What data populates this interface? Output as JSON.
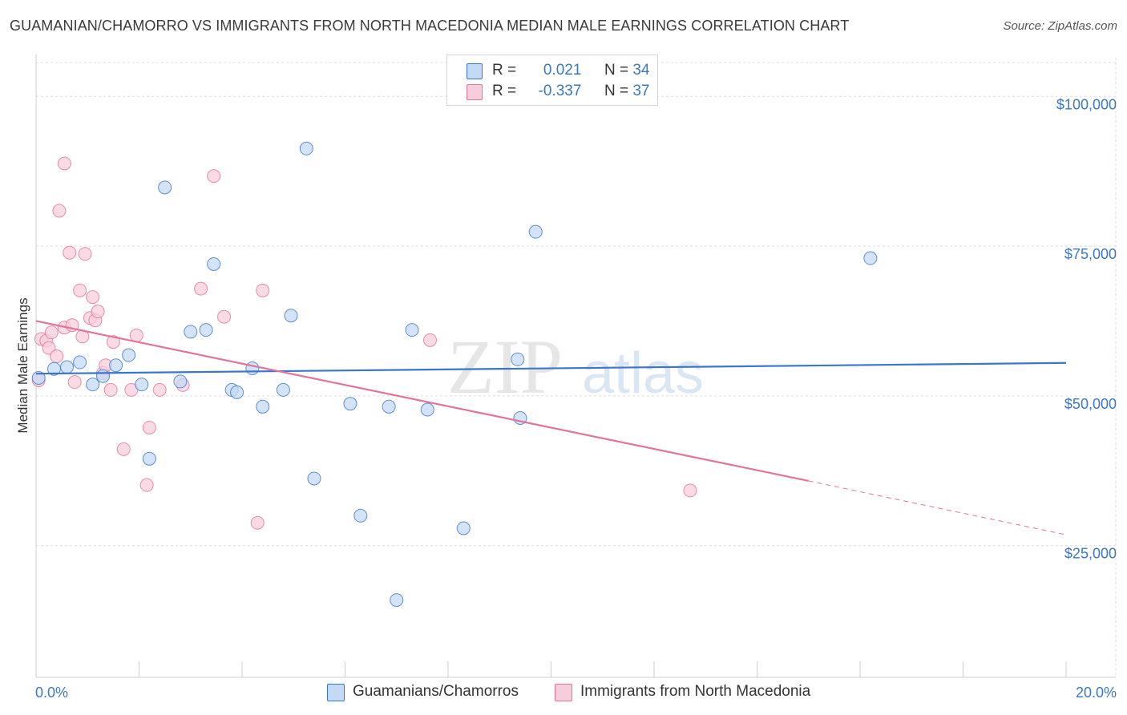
{
  "title": "GUAMANIAN/CHAMORRO VS IMMIGRANTS FROM NORTH MACEDONIA MEDIAN MALE EARNINGS CORRELATION CHART",
  "source": "Source: ZipAtlas.com",
  "watermark": {
    "zip": "ZIP",
    "atlas": "atlas"
  },
  "legend": {
    "r_label": "R =",
    "n_label": "N =",
    "series1": {
      "r": "0.021",
      "n": "34"
    },
    "series2": {
      "r": "-0.337",
      "n": "37"
    }
  },
  "bottom_legend": {
    "series1": "Guamanians/Chamorros",
    "series2": "Immigrants from North Macedonia"
  },
  "chart_data": {
    "type": "scatter",
    "title": "GUAMANIAN/CHAMORRO VS IMMIGRANTS FROM NORTH MACEDONIA MEDIAN MALE EARNINGS CORRELATION CHART",
    "xlabel": "",
    "ylabel": "Median Male Earnings",
    "xlim": [
      0,
      20
    ],
    "ylim": [
      3000,
      107000
    ],
    "x_tick_labels": [
      "0.0%",
      "20.0%"
    ],
    "y_ticks": [
      25000,
      50000,
      75000,
      100000
    ],
    "y_tick_labels": [
      "$25,000",
      "$50,000",
      "$75,000",
      "$100,000"
    ],
    "grid": true,
    "colors": {
      "series1": "#3a76cc",
      "series2": "#e2739a",
      "series1_fill": "#c4d9f5",
      "series2_fill": "#f8cddb"
    },
    "series": [
      {
        "name": "Guamanians/Chamorros",
        "r": 0.021,
        "n": 34,
        "trend": {
          "x": [
            0,
            20
          ],
          "y": [
            53700,
            55500
          ]
        },
        "points": [
          {
            "x": 0.05,
            "y": 53000
          },
          {
            "x": 0.35,
            "y": 54500
          },
          {
            "x": 0.6,
            "y": 54800
          },
          {
            "x": 0.85,
            "y": 55600
          },
          {
            "x": 1.1,
            "y": 51900
          },
          {
            "x": 1.3,
            "y": 53300
          },
          {
            "x": 1.55,
            "y": 55100
          },
          {
            "x": 1.8,
            "y": 56800
          },
          {
            "x": 2.05,
            "y": 51900
          },
          {
            "x": 2.2,
            "y": 39500
          },
          {
            "x": 2.5,
            "y": 84800
          },
          {
            "x": 2.8,
            "y": 52400
          },
          {
            "x": 3.0,
            "y": 60700
          },
          {
            "x": 3.3,
            "y": 61000
          },
          {
            "x": 3.45,
            "y": 72000
          },
          {
            "x": 3.8,
            "y": 51000
          },
          {
            "x": 3.9,
            "y": 50600
          },
          {
            "x": 4.2,
            "y": 54600
          },
          {
            "x": 4.4,
            "y": 48200
          },
          {
            "x": 4.8,
            "y": 51000
          },
          {
            "x": 4.95,
            "y": 63400
          },
          {
            "x": 5.25,
            "y": 91300
          },
          {
            "x": 5.4,
            "y": 36200
          },
          {
            "x": 6.3,
            "y": 30000
          },
          {
            "x": 6.1,
            "y": 48700
          },
          {
            "x": 6.85,
            "y": 48200
          },
          {
            "x": 7.3,
            "y": 61000
          },
          {
            "x": 7.6,
            "y": 47700
          },
          {
            "x": 8.3,
            "y": 27900
          },
          {
            "x": 7.0,
            "y": 15900
          },
          {
            "x": 9.35,
            "y": 56100
          },
          {
            "x": 9.4,
            "y": 46300
          },
          {
            "x": 9.7,
            "y": 77400
          },
          {
            "x": 16.2,
            "y": 73000
          }
        ]
      },
      {
        "name": "Immigrants from North Macedonia",
        "r": -0.337,
        "n": 37,
        "trend": {
          "x": [
            0,
            15
          ],
          "y": [
            62500,
            35800
          ]
        },
        "trend_dashed": {
          "x": [
            15,
            20
          ],
          "y": [
            35800,
            26800
          ]
        },
        "points": [
          {
            "x": 0.05,
            "y": 52600
          },
          {
            "x": 0.1,
            "y": 59500
          },
          {
            "x": 0.2,
            "y": 59200
          },
          {
            "x": 0.25,
            "y": 58000
          },
          {
            "x": 0.3,
            "y": 60600
          },
          {
            "x": 0.4,
            "y": 56600
          },
          {
            "x": 0.45,
            "y": 80900
          },
          {
            "x": 0.55,
            "y": 61400
          },
          {
            "x": 0.55,
            "y": 88800
          },
          {
            "x": 0.65,
            "y": 73900
          },
          {
            "x": 0.7,
            "y": 61800
          },
          {
            "x": 0.75,
            "y": 52300
          },
          {
            "x": 0.85,
            "y": 67600
          },
          {
            "x": 0.9,
            "y": 59900
          },
          {
            "x": 0.95,
            "y": 73700
          },
          {
            "x": 1.05,
            "y": 63000
          },
          {
            "x": 1.1,
            "y": 66500
          },
          {
            "x": 1.15,
            "y": 62600
          },
          {
            "x": 1.2,
            "y": 64100
          },
          {
            "x": 1.3,
            "y": 53800
          },
          {
            "x": 1.35,
            "y": 55100
          },
          {
            "x": 1.45,
            "y": 51000
          },
          {
            "x": 1.5,
            "y": 59000
          },
          {
            "x": 1.7,
            "y": 41100
          },
          {
            "x": 1.85,
            "y": 51000
          },
          {
            "x": 1.95,
            "y": 60100
          },
          {
            "x": 2.15,
            "y": 35100
          },
          {
            "x": 2.2,
            "y": 44700
          },
          {
            "x": 2.4,
            "y": 51000
          },
          {
            "x": 2.85,
            "y": 51800
          },
          {
            "x": 3.2,
            "y": 67900
          },
          {
            "x": 3.45,
            "y": 86700
          },
          {
            "x": 3.65,
            "y": 63200
          },
          {
            "x": 4.3,
            "y": 28800
          },
          {
            "x": 4.4,
            "y": 67600
          },
          {
            "x": 7.65,
            "y": 59300
          },
          {
            "x": 12.7,
            "y": 34200
          }
        ]
      }
    ]
  }
}
